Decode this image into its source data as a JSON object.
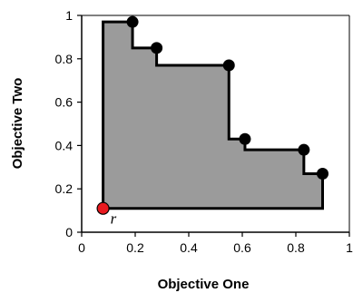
{
  "chart_data": {
    "type": "area",
    "title": "",
    "xlabel": "Objective One",
    "ylabel": "Objective Two",
    "xlim": [
      0,
      1
    ],
    "ylim": [
      0,
      1
    ],
    "xticks": [
      "0",
      "0.2",
      "0.4",
      "0.6",
      "0.8",
      "1"
    ],
    "yticks": [
      "0",
      "0.2",
      "0.4",
      "0.6",
      "0.8",
      "1"
    ],
    "grid": false,
    "pareto_points": [
      {
        "x": 0.19,
        "y": 0.97
      },
      {
        "x": 0.28,
        "y": 0.85
      },
      {
        "x": 0.55,
        "y": 0.77
      },
      {
        "x": 0.61,
        "y": 0.43
      },
      {
        "x": 0.83,
        "y": 0.38
      },
      {
        "x": 0.9,
        "y": 0.27
      }
    ],
    "reference_point": {
      "x": 0.08,
      "y": 0.11,
      "label": "r"
    },
    "colors": {
      "region_fill": "#9b9b9b",
      "outline": "#000000",
      "points": "#000000",
      "reference_point": "#e8191f"
    }
  }
}
